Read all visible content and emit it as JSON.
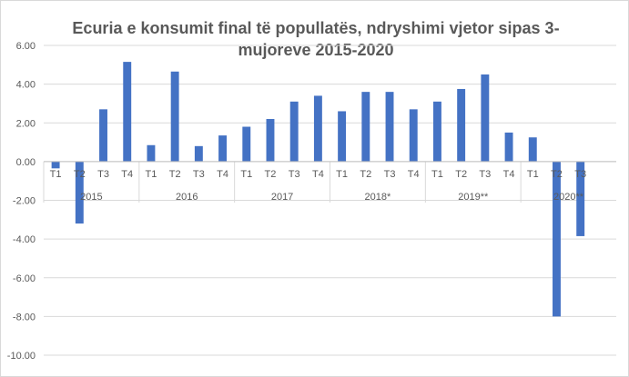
{
  "chart_data": {
    "type": "bar",
    "title_line1": "Ecuria e konsumit final të popullatës, ndryshimi vjetor sipas 3-",
    "title_line2": "mujoreve 2015-2020",
    "ylim": [
      -10,
      6
    ],
    "y_ticks": [
      "6.00",
      "4.00",
      "2.00",
      "0.00",
      "-2.00",
      "-4.00",
      "-6.00",
      "-8.00",
      "-10.00"
    ],
    "grid": true,
    "bar_color": "#4472C4",
    "years": [
      {
        "label": "2015",
        "quarters": [
          "T1",
          "T2",
          "T3",
          "T4"
        ],
        "values": [
          -0.35,
          -3.2,
          2.7,
          5.15
        ]
      },
      {
        "label": "2016",
        "quarters": [
          "T1",
          "T2",
          "T3",
          "T4"
        ],
        "values": [
          0.85,
          4.65,
          0.8,
          1.35
        ]
      },
      {
        "label": "2017",
        "quarters": [
          "T1",
          "T2",
          "T3",
          "T4"
        ],
        "values": [
          1.8,
          2.2,
          3.1,
          3.4
        ]
      },
      {
        "label": "2018*",
        "quarters": [
          "T1",
          "T2",
          "T3",
          "T4"
        ],
        "values": [
          2.6,
          3.6,
          3.6,
          2.7
        ]
      },
      {
        "label": "2019**",
        "quarters": [
          "T1",
          "T2",
          "T3",
          "T4"
        ],
        "values": [
          3.1,
          3.75,
          4.5,
          1.5
        ]
      },
      {
        "label": "2020**",
        "quarters": [
          "T1",
          "T2",
          "T3"
        ],
        "values": [
          1.25,
          -8.0,
          -3.85
        ]
      }
    ]
  }
}
